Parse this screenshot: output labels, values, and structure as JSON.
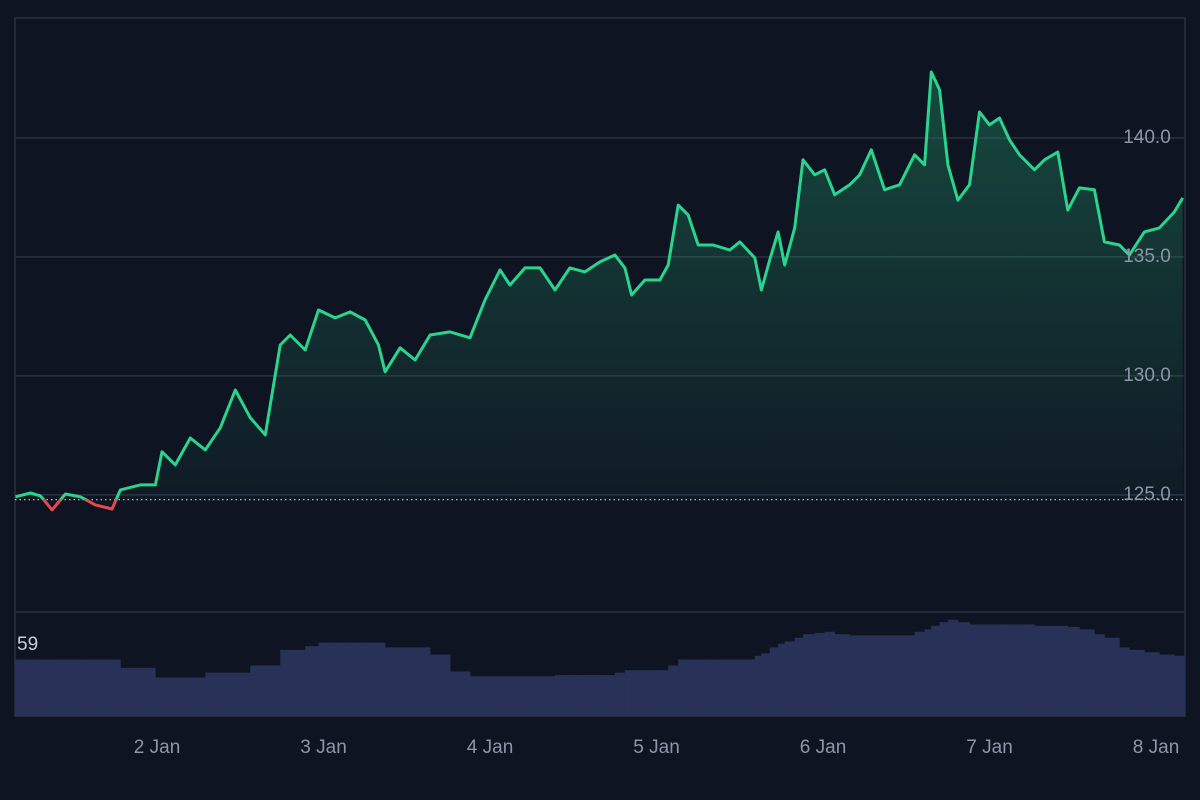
{
  "chart_data": {
    "type": "line",
    "baseline": 124.8,
    "grid": true,
    "xlim": [
      1.147,
      8.174
    ],
    "xticks": [
      {
        "value": 2,
        "label": "2 Jan"
      },
      {
        "value": 3,
        "label": "3 Jan"
      },
      {
        "value": 4,
        "label": "4 Jan"
      },
      {
        "value": 5,
        "label": "5 Jan"
      },
      {
        "value": 6,
        "label": "6 Jan"
      },
      {
        "value": 7,
        "label": "7 Jan"
      },
      {
        "value": 8,
        "label": "8 Jan"
      }
    ],
    "ylim": [
      120.08,
      145.04
    ],
    "yticks": [
      {
        "value": 125,
        "label": "125.0"
      },
      {
        "value": 130,
        "label": "130.0"
      },
      {
        "value": 135,
        "label": "135.0"
      },
      {
        "value": 140,
        "label": "140.0"
      }
    ],
    "y2lim": [
      0,
      86.4
    ],
    "y2ticks": [
      59
    ],
    "x": [
      1.15,
      1.24,
      1.3,
      1.37,
      1.45,
      1.54,
      1.63,
      1.73,
      1.78,
      1.9,
      1.99,
      2.03,
      2.11,
      2.2,
      2.29,
      2.38,
      2.47,
      2.56,
      2.65,
      2.74,
      2.8,
      2.89,
      2.97,
      3.07,
      3.16,
      3.25,
      3.33,
      3.37,
      3.46,
      3.55,
      3.64,
      3.76,
      3.88,
      3.97,
      4.06,
      4.12,
      4.21,
      4.3,
      4.39,
      4.48,
      4.57,
      4.66,
      4.75,
      4.81,
      4.85,
      4.93,
      5.02,
      5.07,
      5.13,
      5.19,
      5.25,
      5.34,
      5.44,
      5.5,
      5.59,
      5.63,
      5.68,
      5.73,
      5.77,
      5.83,
      5.88,
      5.95,
      6.01,
      6.07,
      6.16,
      6.22,
      6.29,
      6.37,
      6.46,
      6.55,
      6.61,
      6.65,
      6.7,
      6.75,
      6.81,
      6.88,
      6.94,
      7.0,
      7.06,
      7.12,
      7.18,
      7.27,
      7.33,
      7.41,
      7.47,
      7.54,
      7.63,
      7.69,
      7.78,
      7.84,
      7.93,
      8.02,
      8.11,
      8.16
    ],
    "series": [
      {
        "color": "#2ad48c",
        "color_below": "#e5484d",
        "values": [
          124.92,
          125.08,
          124.96,
          124.37,
          125.04,
          124.92,
          124.58,
          124.41,
          125.21,
          125.42,
          125.42,
          126.81,
          126.26,
          127.39,
          126.89,
          127.82,
          129.41,
          128.24,
          127.52,
          131.3,
          131.72,
          131.09,
          132.77,
          132.44,
          132.69,
          132.35,
          131.3,
          130.17,
          131.18,
          130.67,
          131.72,
          131.85,
          131.6,
          133.19,
          134.45,
          133.82,
          134.54,
          134.54,
          133.61,
          134.54,
          134.37,
          134.79,
          135.08,
          134.54,
          133.4,
          134.03,
          134.03,
          134.66,
          137.18,
          136.76,
          135.5,
          135.5,
          135.29,
          135.63,
          134.96,
          133.61,
          134.87,
          136.05,
          134.66,
          136.22,
          139.08,
          138.45,
          138.66,
          137.61,
          138.03,
          138.45,
          139.5,
          137.82,
          138.03,
          139.29,
          138.87,
          142.77,
          142.02,
          138.87,
          137.39,
          138.03,
          141.09,
          140.55,
          140.84,
          139.92,
          139.29,
          138.66,
          139.08,
          139.41,
          136.97,
          137.9,
          137.82,
          135.63,
          135.5,
          135.08,
          136.05,
          136.22,
          136.89,
          137.48
        ]
      },
      {
        "type": "bar",
        "axis": "y2",
        "color": "#283157",
        "values": [
          47,
          47,
          47,
          47,
          47,
          47,
          47,
          47,
          40,
          40,
          32,
          32,
          32,
          32,
          36,
          36,
          36,
          42,
          42,
          55,
          55,
          58,
          61,
          61,
          61,
          61,
          61,
          57,
          57,
          57,
          51,
          37,
          33,
          33,
          33,
          33,
          33,
          33,
          34,
          34,
          34,
          34,
          36,
          38,
          38,
          38,
          38,
          42,
          47,
          47,
          47,
          47,
          47,
          47,
          50,
          52,
          57,
          60,
          62,
          65,
          68,
          69,
          70,
          68,
          67,
          67,
          67,
          67,
          67,
          70,
          72,
          75,
          78,
          80,
          78,
          76,
          76,
          76,
          76,
          76,
          76,
          75,
          75,
          75,
          74,
          72,
          68,
          65,
          57,
          55,
          53,
          51,
          50,
          50
        ]
      }
    ]
  }
}
